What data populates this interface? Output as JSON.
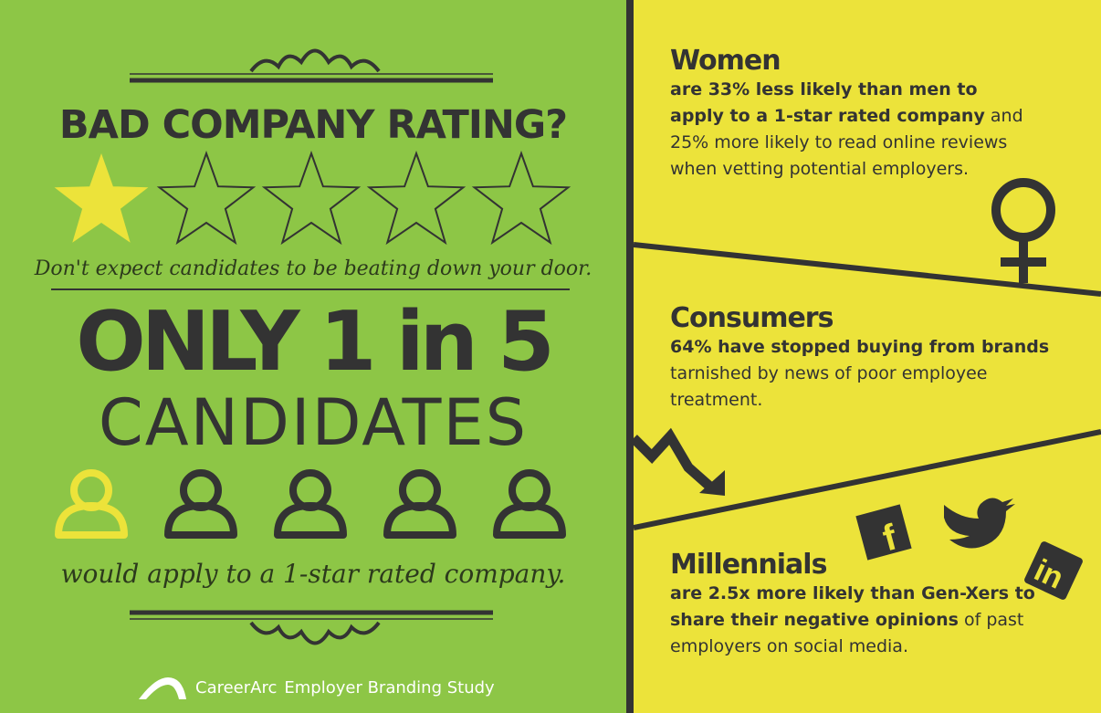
{
  "colors": {
    "green": "#8dc646",
    "yellow": "#ece33a",
    "dark": "#333333"
  },
  "left": {
    "headline": "BAD COMPANY RATING?",
    "rating": {
      "stars_filled": 1,
      "stars_total": 5
    },
    "tagline": "Don't expect candidates to be beating down your door.",
    "big_line1": "ONLY 1 in 5",
    "big_line2": "CANDIDATES",
    "candidates": {
      "highlighted": 1,
      "total": 5
    },
    "tagline2": "would apply to a 1-star rated company.",
    "footer": {
      "brand": "CareerArc",
      "study": "Employer Branding Study"
    }
  },
  "right": {
    "women": {
      "title": "Women",
      "bold": "are 33% less likely than men to apply to a 1-star rated company",
      "rest": " and 25% more likely to read online reviews when vetting potential employers.",
      "icon": "female-symbol-icon"
    },
    "consumers": {
      "title": "Consumers",
      "bold": "64% have stopped buying from brands",
      "rest": " tarnished by news of poor employee treatment.",
      "icon": "declining-arrow-icon"
    },
    "millennials": {
      "title": "Millennials",
      "bold": "are 2.5x more likely than Gen-Xers to share their negative opinions",
      "rest": " of past employers on social media.",
      "icons": [
        "facebook-icon",
        "twitter-icon",
        "linkedin-icon"
      ]
    }
  }
}
